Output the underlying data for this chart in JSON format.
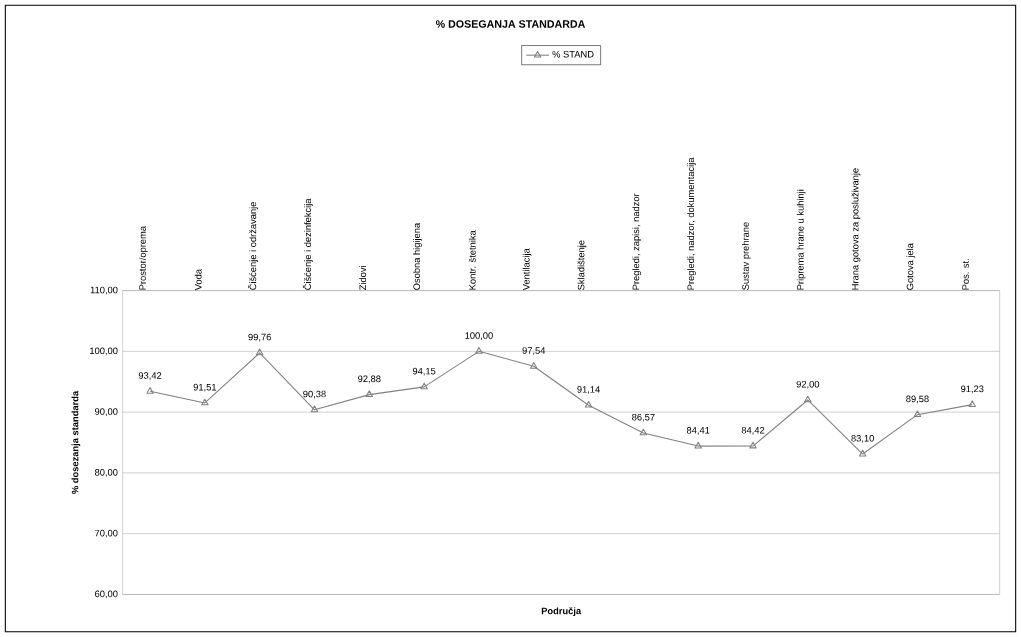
{
  "chart_data": {
    "type": "line",
    "title": "% DOSEGANJA STANDARDA",
    "xlabel": "Područja",
    "ylabel": "% dosezanja standarda",
    "categories": [
      "Prostor/oprema",
      "Voda",
      "Čišćenje i održavanje",
      "Čišćenje i dezinfekcija",
      "Zidovi",
      "Osobna higijena",
      "Kontr. štetnika",
      "Ventilacija",
      "Skladištenje",
      "Pregledi, zapisi, nadzor",
      "Pregledi, nadzor, dokumentacija",
      "Sustav prehrane",
      "Priprema hrane u kuhinji",
      "Hrana gotova za posluživanje",
      "Gotova jela",
      "Pos. st."
    ],
    "series": [
      {
        "name": "% STAND",
        "color": "#808080",
        "values": [
          93.42,
          91.51,
          99.76,
          90.38,
          92.88,
          94.15,
          100.0,
          97.54,
          91.14,
          86.57,
          84.41,
          84.42,
          92.0,
          83.1,
          89.58,
          91.23
        ],
        "value_labels": [
          "93,42",
          "91,51",
          "99,76",
          "90,38",
          "92,88",
          "94,15",
          "100,00",
          "97,54",
          "91,14",
          "86,57",
          "84,41",
          "84,42",
          "92,00",
          "83,10",
          "89,58",
          "91,23"
        ]
      }
    ],
    "ylim": [
      60,
      110
    ],
    "yticks": [
      {
        "value": 60,
        "label": "60,00"
      },
      {
        "value": 70,
        "label": "70,00"
      },
      {
        "value": 80,
        "label": "80,00"
      },
      {
        "value": 90,
        "label": "90,00"
      },
      {
        "value": 100,
        "label": "100,00"
      },
      {
        "value": 110,
        "label": "110,00"
      }
    ],
    "grid": true,
    "legend": "top",
    "marker": "triangle",
    "line_style": "solid"
  }
}
